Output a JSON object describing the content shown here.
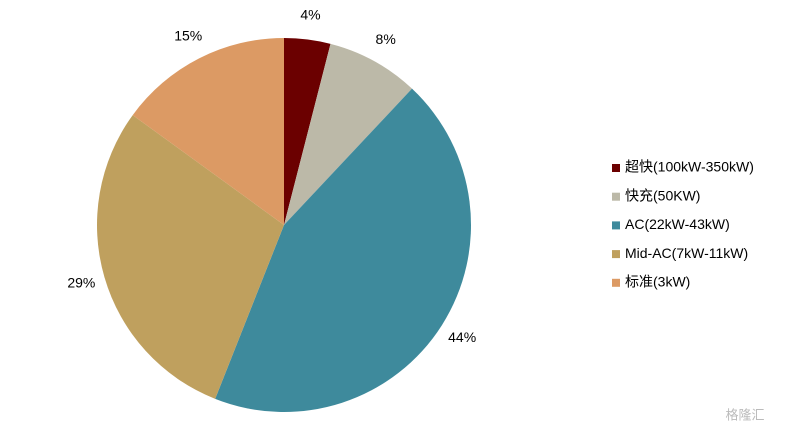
{
  "chart_data": {
    "type": "pie",
    "categories": [
      "超快(100kW-350kW)",
      "快充(50KW)",
      "AC(22kW-43kW)",
      "Mid-AC(7kW-11kW)",
      "标准(3kW)"
    ],
    "values": [
      4,
      8,
      44,
      29,
      15
    ],
    "value_labels": [
      "4%",
      "8%",
      "44%",
      "29%",
      "15%"
    ],
    "colors": [
      "#6b0000",
      "#bcb9a8",
      "#3e8a9c",
      "#bfa05e",
      "#dc9a64"
    ],
    "legend": "right"
  },
  "watermark": "格隆汇"
}
